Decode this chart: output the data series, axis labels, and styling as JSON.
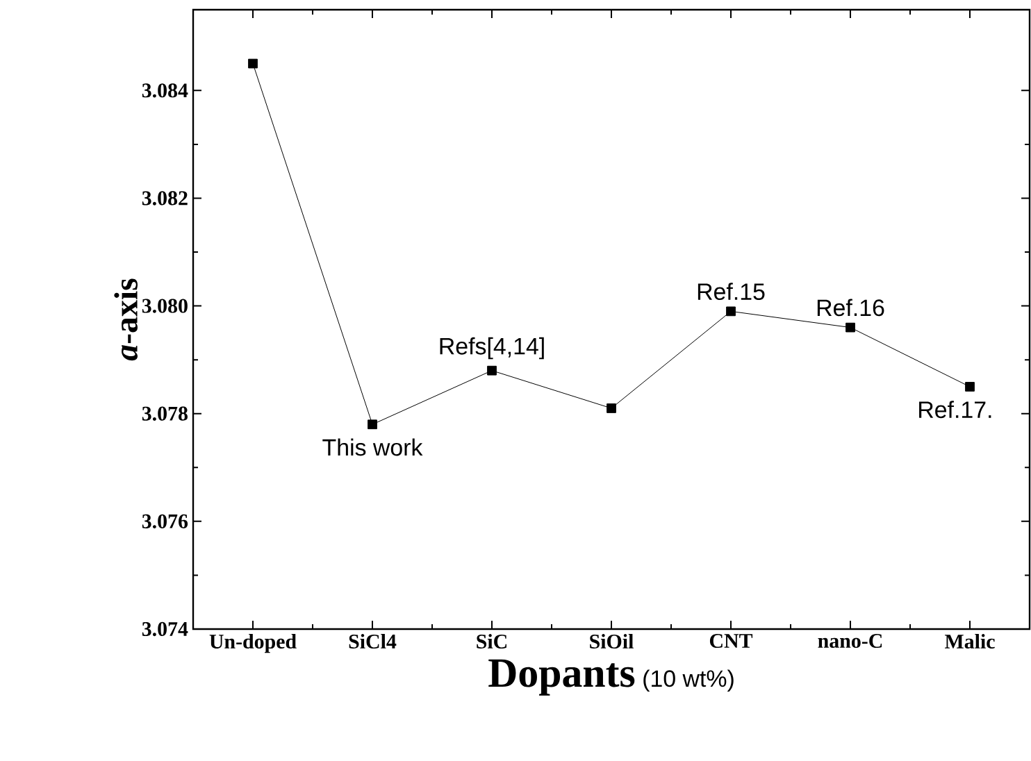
{
  "chart_data": {
    "type": "line",
    "xlabel": "**Dopants** (10 wt%)",
    "ylabel": "*a*-axis",
    "categories": [
      "Un-doped",
      "SiCl4",
      "SiC",
      "SiOil",
      "CNT",
      "nano-C",
      "Malic"
    ],
    "series": [
      {
        "color": "#000000",
        "values": [
          3.0845,
          3.0778,
          3.0788,
          3.0781,
          3.0799,
          3.0796,
          3.0785
        ]
      }
    ],
    "marker": "square",
    "line_style": "solid",
    "ylim": [
      3.074,
      3.0855
    ],
    "yticks": [
      3.074,
      3.076,
      3.078,
      {
        "value": 3.08,
        "label": "3.080"
      },
      3.082,
      3.084
    ],
    "annotations": [
      {
        "text": "This work",
        "x": "SiCl4",
        "y": 3.0778
      },
      {
        "text": "Refs[4,14]",
        "x": "SiC",
        "y": 3.0788
      },
      {
        "text": "Ref.15",
        "x": "CNT",
        "y": 3.0799
      },
      {
        "text": "Ref.16",
        "x": "nano-C",
        "y": 3.0796
      },
      {
        "text": "Ref.17.",
        "x": "Malic",
        "y": 3.0785
      }
    ]
  }
}
